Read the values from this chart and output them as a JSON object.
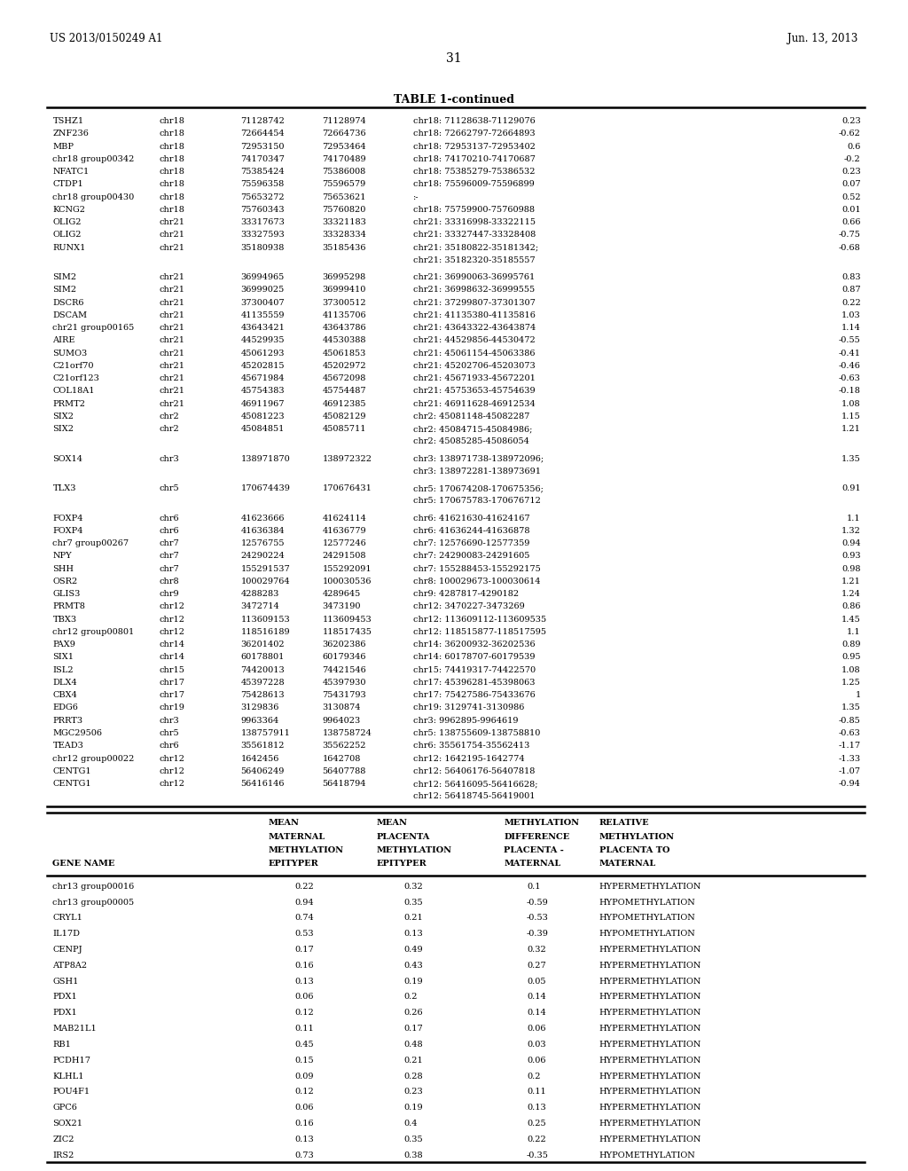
{
  "patent_number": "US 2013/0150249 A1",
  "patent_date": "Jun. 13, 2013",
  "page_number": "31",
  "table_title": "TABLE 1-continued",
  "bg_color": "#ffffff",
  "text_color": "#000000",
  "top_table_rows": [
    [
      "TSHZ1",
      "chr18",
      "71128742",
      "71128974",
      "chr18: 71128638-71129076",
      "0.23"
    ],
    [
      "ZNF236",
      "chr18",
      "72664454",
      "72664736",
      "chr18: 72662797-72664893",
      "-0.62"
    ],
    [
      "MBP",
      "chr18",
      "72953150",
      "72953464",
      "chr18: 72953137-72953402",
      "0.6"
    ],
    [
      "chr18 group00342",
      "chr18",
      "74170347",
      "74170489",
      "chr18: 74170210-74170687",
      "-0.2"
    ],
    [
      "NFATC1",
      "chr18",
      "75385424",
      "75386008",
      "chr18: 75385279-75386532",
      "0.23"
    ],
    [
      "CTDP1",
      "chr18",
      "75596358",
      "75596579",
      "chr18: 75596009-75596899",
      "0.07"
    ],
    [
      "chr18 group00430",
      "chr18",
      "75653272",
      "75653621",
      ":-",
      "0.52"
    ],
    [
      "KCNG2",
      "chr18",
      "75760343",
      "75760820",
      "chr18: 75759900-75760988",
      "0.01"
    ],
    [
      "OLIG2",
      "chr21",
      "33317673",
      "33321183",
      "chr21: 33316998-33322115",
      "0.66"
    ],
    [
      "OLIG2",
      "chr21",
      "33327593",
      "33328334",
      "chr21: 33327447-33328408",
      "-0.75"
    ],
    [
      "RUNX1",
      "chr21",
      "35180938",
      "35185436",
      "chr21: 35180822-35181342;\nchr21: 35182320-35185557",
      "-0.68"
    ],
    [
      "SIM2",
      "chr21",
      "36994965",
      "36995298",
      "chr21: 36990063-36995761",
      "0.83"
    ],
    [
      "SIM2",
      "chr21",
      "36999025",
      "36999410",
      "chr21: 36998632-36999555",
      "0.87"
    ],
    [
      "DSCR6",
      "chr21",
      "37300407",
      "37300512",
      "chr21: 37299807-37301307",
      "0.22"
    ],
    [
      "DSCAM",
      "chr21",
      "41135559",
      "41135706",
      "chr21: 41135380-41135816",
      "1.03"
    ],
    [
      "chr21 group00165",
      "chr21",
      "43643421",
      "43643786",
      "chr21: 43643322-43643874",
      "1.14"
    ],
    [
      "AIRE",
      "chr21",
      "44529935",
      "44530388",
      "chr21: 44529856-44530472",
      "-0.55"
    ],
    [
      "SUMO3",
      "chr21",
      "45061293",
      "45061853",
      "chr21: 45061154-45063386",
      "-0.41"
    ],
    [
      "C21orf70",
      "chr21",
      "45202815",
      "45202972",
      "chr21: 45202706-45203073",
      "-0.46"
    ],
    [
      "C21orf123",
      "chr21",
      "45671984",
      "45672098",
      "chr21: 45671933-45672201",
      "-0.63"
    ],
    [
      "COL18A1",
      "chr21",
      "45754383",
      "45754487",
      "chr21: 45753653-45754639",
      "-0.18"
    ],
    [
      "PRMT2",
      "chr21",
      "46911967",
      "46912385",
      "chr21: 46911628-46912534",
      "1.08"
    ],
    [
      "SIX2",
      "chr2",
      "45081223",
      "45082129",
      "chr2: 45081148-45082287",
      "1.15"
    ],
    [
      "SIX2",
      "chr2",
      "45084851",
      "45085711",
      "chr2: 45084715-45084986;\nchr2: 45085285-45086054",
      "1.21"
    ],
    [
      "SOX14",
      "chr3",
      "138971870",
      "138972322",
      "chr3: 138971738-138972096;\nchr3: 138972281-138973691",
      "1.35"
    ],
    [
      "TLX3",
      "chr5",
      "170674439",
      "170676431",
      "chr5: 170674208-170675356;\nchr5: 170675783-170676712",
      "0.91"
    ],
    [
      "FOXP4",
      "chr6",
      "41623666",
      "41624114",
      "chr6: 41621630-41624167",
      "1.1"
    ],
    [
      "FOXP4",
      "chr6",
      "41636384",
      "41636779",
      "chr6: 41636244-41636878",
      "1.32"
    ],
    [
      "chr7 group00267",
      "chr7",
      "12576755",
      "12577246",
      "chr7: 12576690-12577359",
      "0.94"
    ],
    [
      "NPY",
      "chr7",
      "24290224",
      "24291508",
      "chr7: 24290083-24291605",
      "0.93"
    ],
    [
      "SHH",
      "chr7",
      "155291537",
      "155292091",
      "chr7: 155288453-155292175",
      "0.98"
    ],
    [
      "OSR2",
      "chr8",
      "100029764",
      "100030536",
      "chr8: 100029673-100030614",
      "1.21"
    ],
    [
      "GLIS3",
      "chr9",
      "4288283",
      "4289645",
      "chr9: 4287817-4290182",
      "1.24"
    ],
    [
      "PRMT8",
      "chr12",
      "3472714",
      "3473190",
      "chr12: 3470227-3473269",
      "0.86"
    ],
    [
      "TBX3",
      "chr12",
      "113609153",
      "113609453",
      "chr12: 113609112-113609535",
      "1.45"
    ],
    [
      "chr12 group00801",
      "chr12",
      "118516189",
      "118517435",
      "chr12: 118515877-118517595",
      "1.1"
    ],
    [
      "PAX9",
      "chr14",
      "36201402",
      "36202386",
      "chr14: 36200932-36202536",
      "0.89"
    ],
    [
      "SIX1",
      "chr14",
      "60178801",
      "60179346",
      "chr14: 60178707-60179539",
      "0.95"
    ],
    [
      "ISL2",
      "chr15",
      "74420013",
      "74421546",
      "chr15: 74419317-74422570",
      "1.08"
    ],
    [
      "DLX4",
      "chr17",
      "45397228",
      "45397930",
      "chr17: 45396281-45398063",
      "1.25"
    ],
    [
      "CBX4",
      "chr17",
      "75428613",
      "75431793",
      "chr17: 75427586-75433676",
      "1"
    ],
    [
      "EDG6",
      "chr19",
      "3129836",
      "3130874",
      "chr19: 3129741-3130986",
      "1.35"
    ],
    [
      "PRRT3",
      "chr3",
      "9963364",
      "9964023",
      "chr3: 9962895-9964619",
      "-0.85"
    ],
    [
      "MGC29506",
      "chr5",
      "138757911",
      "138758724",
      "chr5: 138755609-138758810",
      "-0.63"
    ],
    [
      "TEAD3",
      "chr6",
      "35561812",
      "35562252",
      "chr6: 35561754-35562413",
      "-1.17"
    ],
    [
      "chr12 group00022",
      "chr12",
      "1642456",
      "1642708",
      "chr12: 1642195-1642774",
      "-1.33"
    ],
    [
      "CENTG1",
      "chr12",
      "56406249",
      "56407788",
      "chr12: 56406176-56407818",
      "-1.07"
    ],
    [
      "CENTG1",
      "chr12",
      "56416146",
      "56418794",
      "chr12: 56416095-56416628;\nchr12: 56418745-56419001",
      "-0.94"
    ]
  ],
  "bottom_table_rows": [
    [
      "chr13 group00016",
      "0.22",
      "0.32",
      "0.1",
      "HYPERMETHYLATION"
    ],
    [
      "chr13 group00005",
      "0.94",
      "0.35",
      "-0.59",
      "HYPOMETHYLATION"
    ],
    [
      "CRYL1",
      "0.74",
      "0.21",
      "-0.53",
      "HYPOMETHYLATION"
    ],
    [
      "IL17D",
      "0.53",
      "0.13",
      "-0.39",
      "HYPOMETHYLATION"
    ],
    [
      "CENPJ",
      "0.17",
      "0.49",
      "0.32",
      "HYPERMETHYLATION"
    ],
    [
      "ATP8A2",
      "0.16",
      "0.43",
      "0.27",
      "HYPERMETHYLATION"
    ],
    [
      "GSH1",
      "0.13",
      "0.19",
      "0.05",
      "HYPERMETHYLATION"
    ],
    [
      "PDX1",
      "0.06",
      "0.2",
      "0.14",
      "HYPERMETHYLATION"
    ],
    [
      "PDX1",
      "0.12",
      "0.26",
      "0.14",
      "HYPERMETHYLATION"
    ],
    [
      "MAB21L1",
      "0.11",
      "0.17",
      "0.06",
      "HYPERMETHYLATION"
    ],
    [
      "RB1",
      "0.45",
      "0.48",
      "0.03",
      "HYPERMETHYLATION"
    ],
    [
      "PCDH17",
      "0.15",
      "0.21",
      "0.06",
      "HYPERMETHYLATION"
    ],
    [
      "KLHL1",
      "0.09",
      "0.28",
      "0.2",
      "HYPERMETHYLATION"
    ],
    [
      "POU4F1",
      "0.12",
      "0.23",
      "0.11",
      "HYPERMETHYLATION"
    ],
    [
      "GPC6",
      "0.06",
      "0.19",
      "0.13",
      "HYPERMETHYLATION"
    ],
    [
      "SOX21",
      "0.16",
      "0.4",
      "0.25",
      "HYPERMETHYLATION"
    ],
    [
      "ZIC2",
      "0.13",
      "0.35",
      "0.22",
      "HYPERMETHYLATION"
    ],
    [
      "IRS2",
      "0.73",
      "0.38",
      "-0.35",
      "HYPOMETHYLATION"
    ]
  ]
}
